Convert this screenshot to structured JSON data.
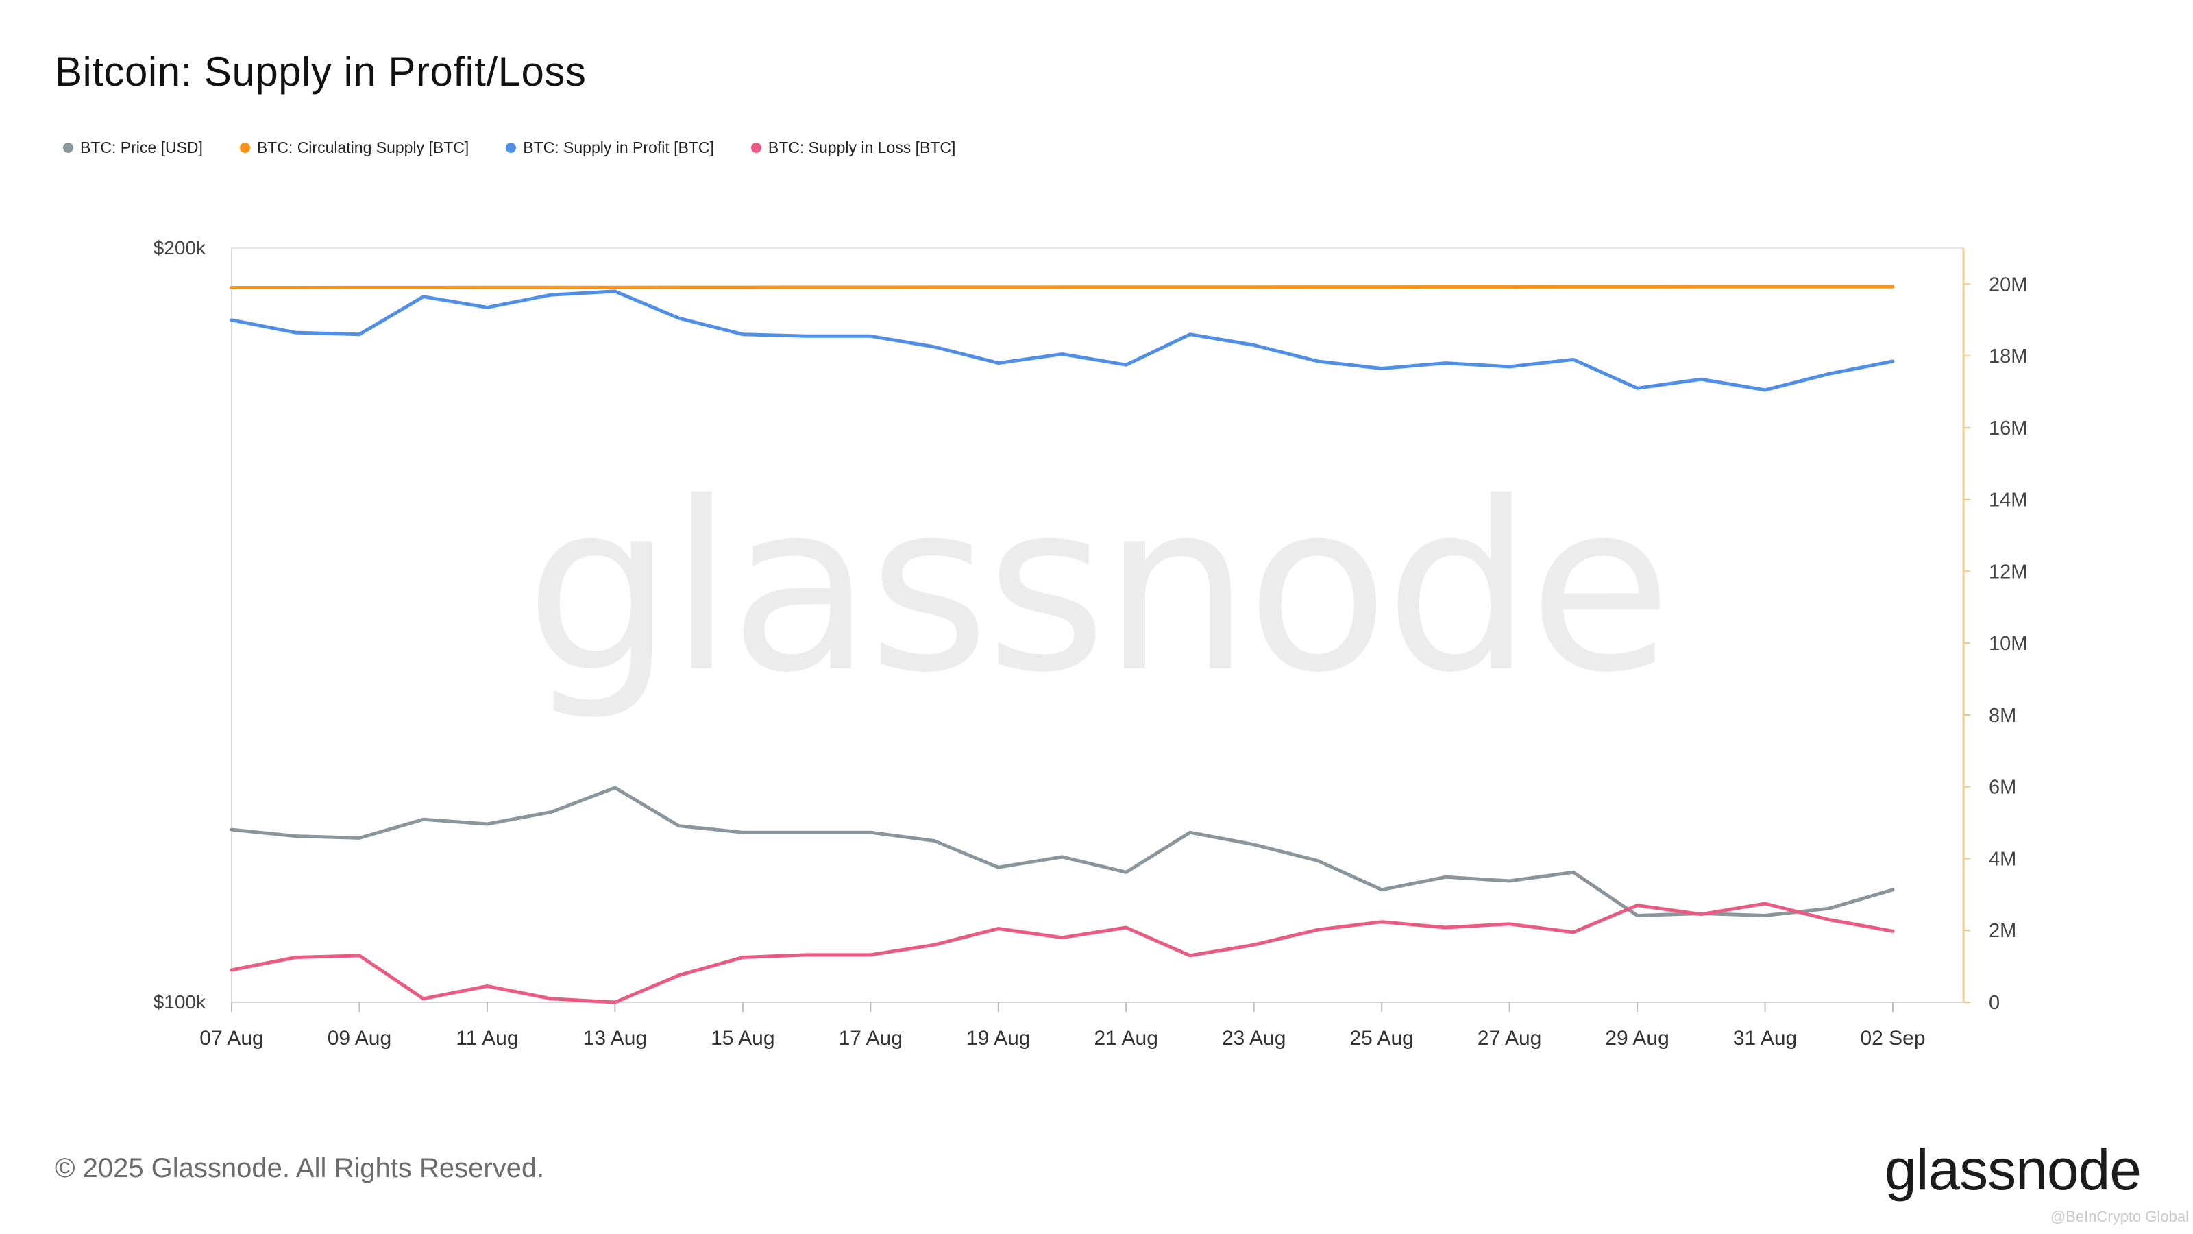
{
  "header": {
    "title": "Bitcoin: Supply in Profit/Loss"
  },
  "watermark": "glassnode",
  "footer": {
    "copyright": "© 2025 Glassnode. All Rights Reserved.",
    "logo_text": "glassnode",
    "credit": "@BeInCrypto Global"
  },
  "colors": {
    "price": "#8a959c",
    "circulating": "#f7931a",
    "profit": "#4f8fe8",
    "loss": "#ea5a82",
    "right_axis": "#f3c784",
    "grid": "#e8e8e8",
    "watermark": "#ececec"
  },
  "chart_data": {
    "type": "line",
    "title": "Bitcoin: Supply in Profit/Loss",
    "x": [
      "07 Aug",
      "08 Aug",
      "09 Aug",
      "10 Aug",
      "11 Aug",
      "12 Aug",
      "13 Aug",
      "14 Aug",
      "15 Aug",
      "16 Aug",
      "17 Aug",
      "18 Aug",
      "19 Aug",
      "20 Aug",
      "21 Aug",
      "22 Aug",
      "23 Aug",
      "24 Aug",
      "25 Aug",
      "26 Aug",
      "27 Aug",
      "28 Aug",
      "29 Aug",
      "30 Aug",
      "31 Aug",
      "01 Sep",
      "02 Sep"
    ],
    "x_tick_labels": [
      "07 Aug",
      "09 Aug",
      "11 Aug",
      "13 Aug",
      "15 Aug",
      "17 Aug",
      "19 Aug",
      "21 Aug",
      "23 Aug",
      "25 Aug",
      "27 Aug",
      "29 Aug",
      "31 Aug",
      "02 Sep"
    ],
    "left_axis": {
      "scale": "log",
      "ylim": [
        100000,
        200000
      ],
      "tick_labels": [
        "$200k",
        "$100k"
      ]
    },
    "right_axis": {
      "scale": "linear",
      "ylim": [
        0,
        21000000
      ],
      "tick_labels": [
        "20M",
        "18M",
        "16M",
        "14M",
        "12M",
        "10M",
        "8M",
        "6M",
        "4M",
        "2M",
        "0"
      ]
    },
    "legend": {
      "placement": "top-left",
      "entries": [
        "BTC: Price [USD]",
        "BTC: Circulating Supply [BTC]",
        "BTC: Supply in Profit [BTC]",
        "BTC: Supply in Loss [BTC]"
      ]
    },
    "series": [
      {
        "name": "BTC: Price [USD]",
        "axis": "left",
        "color": "#8a959c",
        "values": [
          117200,
          116500,
          116300,
          118300,
          117800,
          119100,
          121800,
          117600,
          116900,
          116900,
          116900,
          116000,
          113200,
          114300,
          112700,
          116900,
          115600,
          113900,
          110900,
          112200,
          111800,
          112700,
          108300,
          108500,
          108300,
          109000,
          110900
        ]
      },
      {
        "name": "BTC: Circulating Supply [BTC]",
        "axis": "right",
        "color": "#f7931a",
        "values": [
          19902000,
          19903000,
          19904000,
          19905000,
          19906000,
          19907000,
          19908000,
          19909000,
          19910000,
          19911000,
          19912000,
          19913000,
          19914000,
          19915000,
          19916000,
          19917000,
          19918000,
          19919000,
          19920000,
          19921000,
          19922000,
          19923000,
          19924000,
          19925000,
          19926000,
          19927000,
          19928000
        ]
      },
      {
        "name": "BTC: Supply in Profit [BTC]",
        "axis": "right",
        "color": "#4f8fe8",
        "values": [
          19000000,
          18650000,
          18600000,
          19650000,
          19350000,
          19700000,
          19800000,
          19050000,
          18600000,
          18550000,
          18550000,
          18250000,
          17800000,
          18050000,
          17750000,
          18600000,
          18300000,
          17850000,
          17650000,
          17800000,
          17700000,
          17900000,
          17100000,
          17350000,
          17050000,
          17500000,
          17850000
        ]
      },
      {
        "name": "BTC: Supply in Loss [BTC]",
        "axis": "right",
        "color": "#ea5a82",
        "values": [
          900000,
          1250000,
          1300000,
          100000,
          450000,
          100000,
          0,
          750000,
          1250000,
          1320000,
          1320000,
          1600000,
          2050000,
          1800000,
          2080000,
          1300000,
          1600000,
          2020000,
          2240000,
          2080000,
          2180000,
          1950000,
          2700000,
          2450000,
          2750000,
          2300000,
          1980000
        ]
      }
    ]
  }
}
